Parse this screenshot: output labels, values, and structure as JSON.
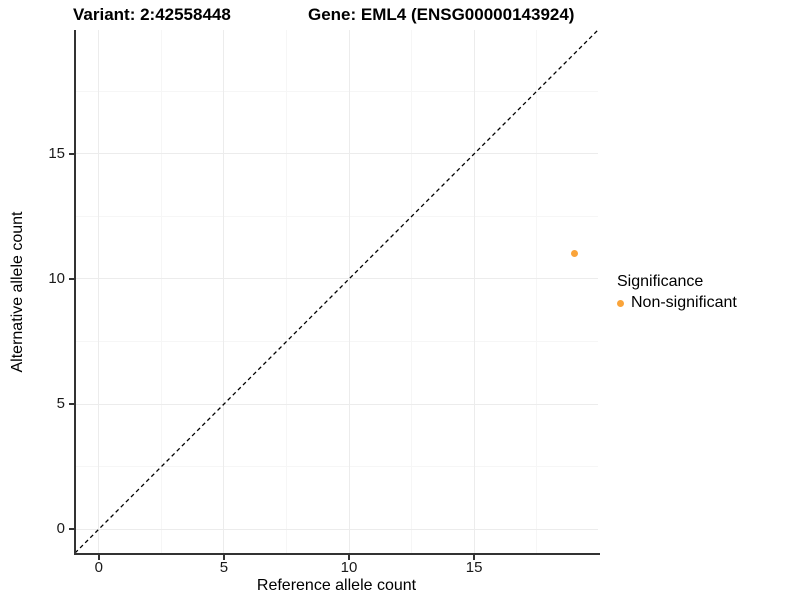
{
  "figure": {
    "title_left": "Variant: 2:42558448",
    "title_right": "Gene: EML4 (ENSG00000143924)",
    "x_axis_label": "Reference allele count",
    "y_axis_label": "Alternative allele count"
  },
  "legend": {
    "title": "Significance",
    "entries": [
      {
        "label": "Non-significant",
        "color": "#FAA43A"
      }
    ]
  },
  "colors": {
    "point": "#FAA43A",
    "axis_line": "#333333",
    "grid_major": "#ececec",
    "grid_minor": "#f6f6f6",
    "reference_line": "#000000",
    "background": "#ffffff"
  },
  "chart_data": {
    "type": "scatter",
    "title": "Variant: 2:42558448    Gene: EML4 (ENSG00000143924)",
    "xlabel": "Reference allele count",
    "ylabel": "Alternative allele count",
    "xlim": [
      -0.95,
      19.95
    ],
    "ylim": [
      -0.95,
      19.95
    ],
    "x_ticks": [
      0,
      5,
      10,
      15
    ],
    "y_ticks": [
      0,
      5,
      10,
      15
    ],
    "x_minor_ticks": [
      2.5,
      7.5,
      12.5,
      17.5
    ],
    "y_minor_ticks": [
      2.5,
      7.5,
      12.5,
      17.5
    ],
    "grid": true,
    "legend_position": "right",
    "series": [
      {
        "name": "Non-significant",
        "color": "#FAA43A",
        "points": [
          {
            "x": 19,
            "y": 11
          }
        ]
      }
    ],
    "reference_line": {
      "type": "identity_y_equals_x",
      "style": "dashed",
      "color": "#000000"
    }
  }
}
